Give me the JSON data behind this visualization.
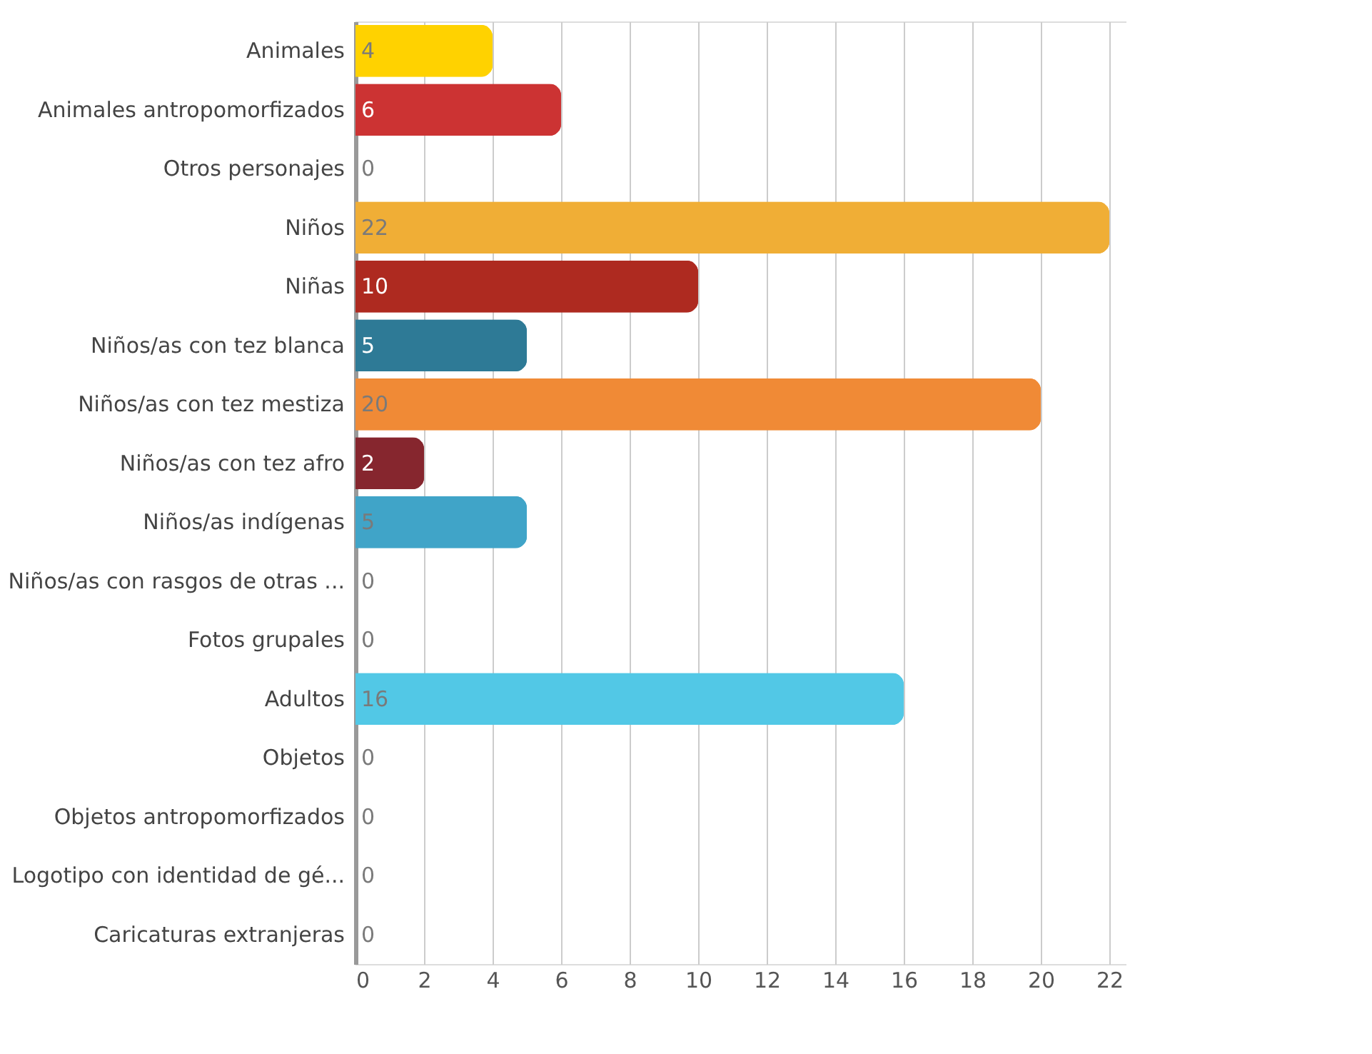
{
  "chart_data": {
    "type": "bar",
    "orientation": "horizontal",
    "categories": [
      "Animales",
      "Animales antropomorfizados",
      "Otros personajes",
      "Niños",
      "Niñas",
      "Niños/as con tez blanca",
      "Niños/as con tez mestiza",
      "Niños/as con tez afro",
      "Niños/as indígenas",
      "Niños/as con rasgos de otras ...",
      "Fotos grupales",
      "Adultos",
      "Objetos",
      "Objetos antropomorfizados",
      "Logotipo con identidad de gé...",
      "Caricaturas extranjeras"
    ],
    "values": [
      4,
      6,
      0,
      22,
      10,
      5,
      20,
      2,
      5,
      0,
      0,
      16,
      0,
      0,
      0,
      0
    ],
    "colors": [
      "#ffd200",
      "#cc3333",
      "#6a9aa8",
      "#f0ae36",
      "#ae2a20",
      "#2e7a96",
      "#f08a36",
      "#86262e",
      "#40a4c8",
      "#e89a9a",
      "#8a6a8a",
      "#52c8e6",
      "#f8e69a",
      "#e8a0a0",
      "#6a9aa0",
      "#f8d09a"
    ],
    "xlim": [
      0,
      22.5
    ],
    "xticks": [
      0,
      2,
      4,
      6,
      8,
      10,
      12,
      14,
      16,
      18,
      20,
      22
    ],
    "grid": "x",
    "data_labels": true
  }
}
